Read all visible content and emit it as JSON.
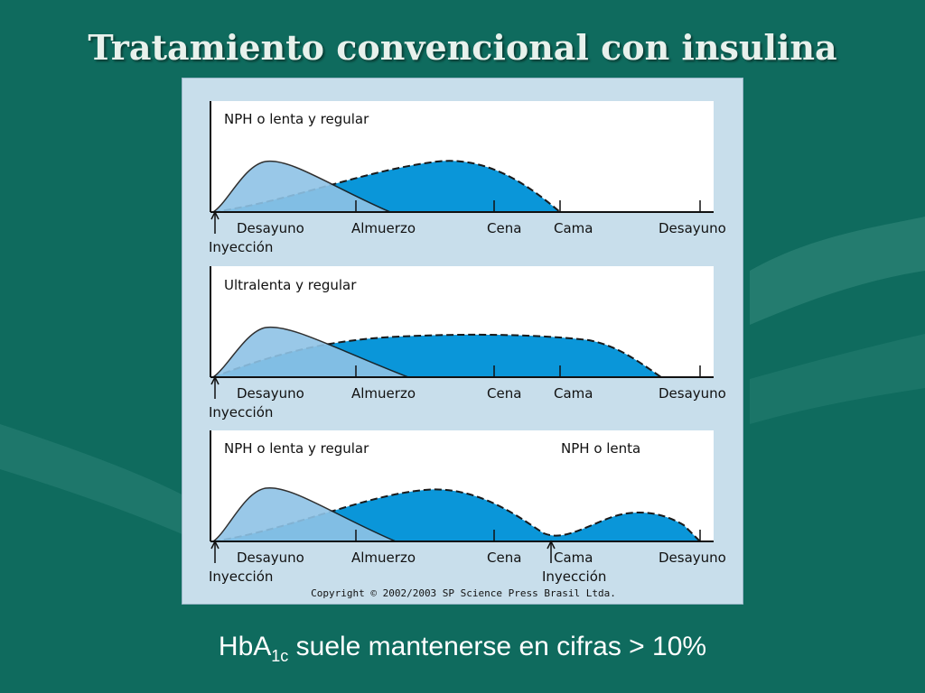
{
  "title": "Tratamiento convencional con insulina",
  "figure": {
    "copyright": "Copyright © 2002/2003 SP Science Press Brasil Ltda.",
    "panels": [
      {
        "label": "NPH o lenta y regular",
        "label2": "",
        "ticks": [
          "Desayuno",
          "Almuerzo",
          "Cena",
          "Cama",
          "Desayuno"
        ],
        "injection": "Inyección",
        "injection2": ""
      },
      {
        "label": "Ultralenta y regular",
        "label2": "",
        "ticks": [
          "Desayuno",
          "Almuerzo",
          "Cena",
          "Cama",
          "Desayuno"
        ],
        "injection": "Inyección",
        "injection2": ""
      },
      {
        "label": "NPH o lenta y regular",
        "label2": "NPH o lenta",
        "ticks": [
          "Desayuno",
          "Almuerzo",
          "Cena",
          "Cama",
          "Desayuno"
        ],
        "injection": "Inyección",
        "injection2": "Inyección"
      }
    ]
  },
  "footer": {
    "prefix": "HbA",
    "subscript": "1c",
    "suffix": " suele mantenerse en cifras > 10%"
  },
  "colors": {
    "background": "#0f6b5e",
    "figure_bg": "#c8deeb",
    "regular_fill": "#8ec3e6",
    "long_fill": "#0a96d9"
  }
}
